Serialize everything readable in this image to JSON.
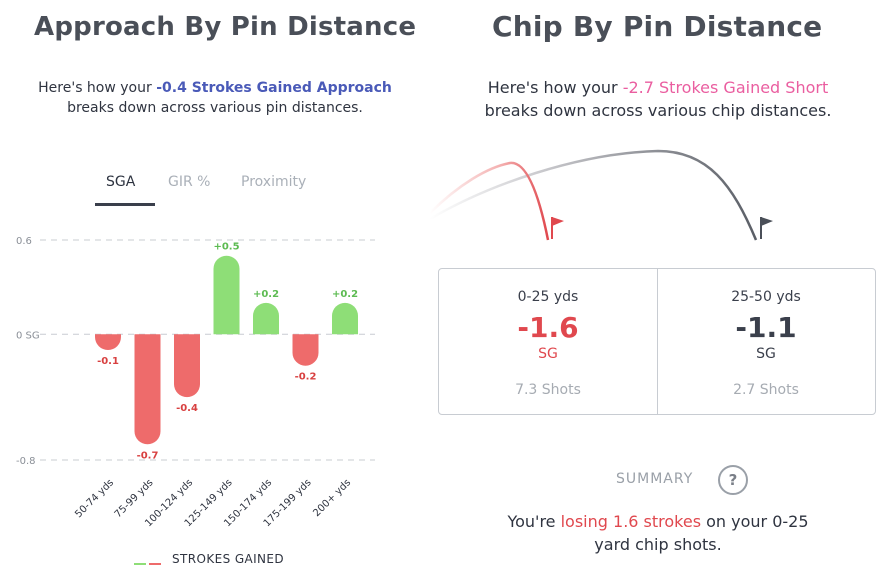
{
  "left": {
    "title": "Approach By Pin Distance",
    "subtitle_pre": "Here's how your ",
    "subtitle_highlight": "-0.4 Strokes Gained Approach",
    "subtitle_post": "breaks down across various pin distances.",
    "tabs": [
      {
        "label": "SGA",
        "active": true
      },
      {
        "label": "GIR %",
        "active": false
      },
      {
        "label": "Proximity",
        "active": false
      }
    ],
    "legend_label": "STROKES GAINED"
  },
  "chart_data": {
    "type": "bar",
    "title": "Approach By Pin Distance",
    "ylabel": "SG",
    "ylim": [
      -0.8,
      0.6
    ],
    "yticks": [
      {
        "value": 0.6,
        "label": "0.6"
      },
      {
        "value": 0,
        "label": "0 SG"
      },
      {
        "value": -0.8,
        "label": "-0.8"
      }
    ],
    "categories": [
      "50-74 yds",
      "75-99 yds",
      "100-124 yds",
      "125-149 yds",
      "150-174 yds",
      "175-199 yds",
      "200+ yds"
    ],
    "values": [
      -0.1,
      -0.7,
      -0.4,
      0.5,
      0.2,
      -0.2,
      0.2
    ],
    "labels": [
      "-0.1",
      "-0.7",
      "-0.4",
      "+0.5",
      "+0.2",
      "-0.2",
      "+0.2"
    ],
    "colors": {
      "positive": "#8ede77",
      "negative": "#ee6b6b",
      "positive_text": "#5dbb52",
      "negative_text": "#d84040"
    },
    "legend": "STROKES GAINED"
  },
  "right": {
    "title": "Chip By Pin Distance",
    "subtitle_pre": "Here's how your ",
    "subtitle_highlight": "-2.7 Strokes Gained Short",
    "subtitle_post": "breaks down across various chip distances.",
    "cards": [
      {
        "range": "0-25 yds",
        "value": "-1.6",
        "unit": "SG",
        "shots": "7.3 Shots",
        "color": "#e0484e"
      },
      {
        "range": "25-50 yds",
        "value": "-1.1",
        "unit": "SG",
        "shots": "2.7 Shots",
        "color": "#3a3f4b"
      }
    ],
    "summary_label": "SUMMARY",
    "help_glyph": "?",
    "summary_pre": "You're ",
    "summary_highlight": "losing 1.6 strokes",
    "summary_post": " on your 0-25",
    "summary_line2": "yard chip shots."
  },
  "colors": {
    "accent_blue": "#4a5ab8",
    "accent_pink": "#ea5ea0",
    "loss_red": "#e0484e"
  }
}
